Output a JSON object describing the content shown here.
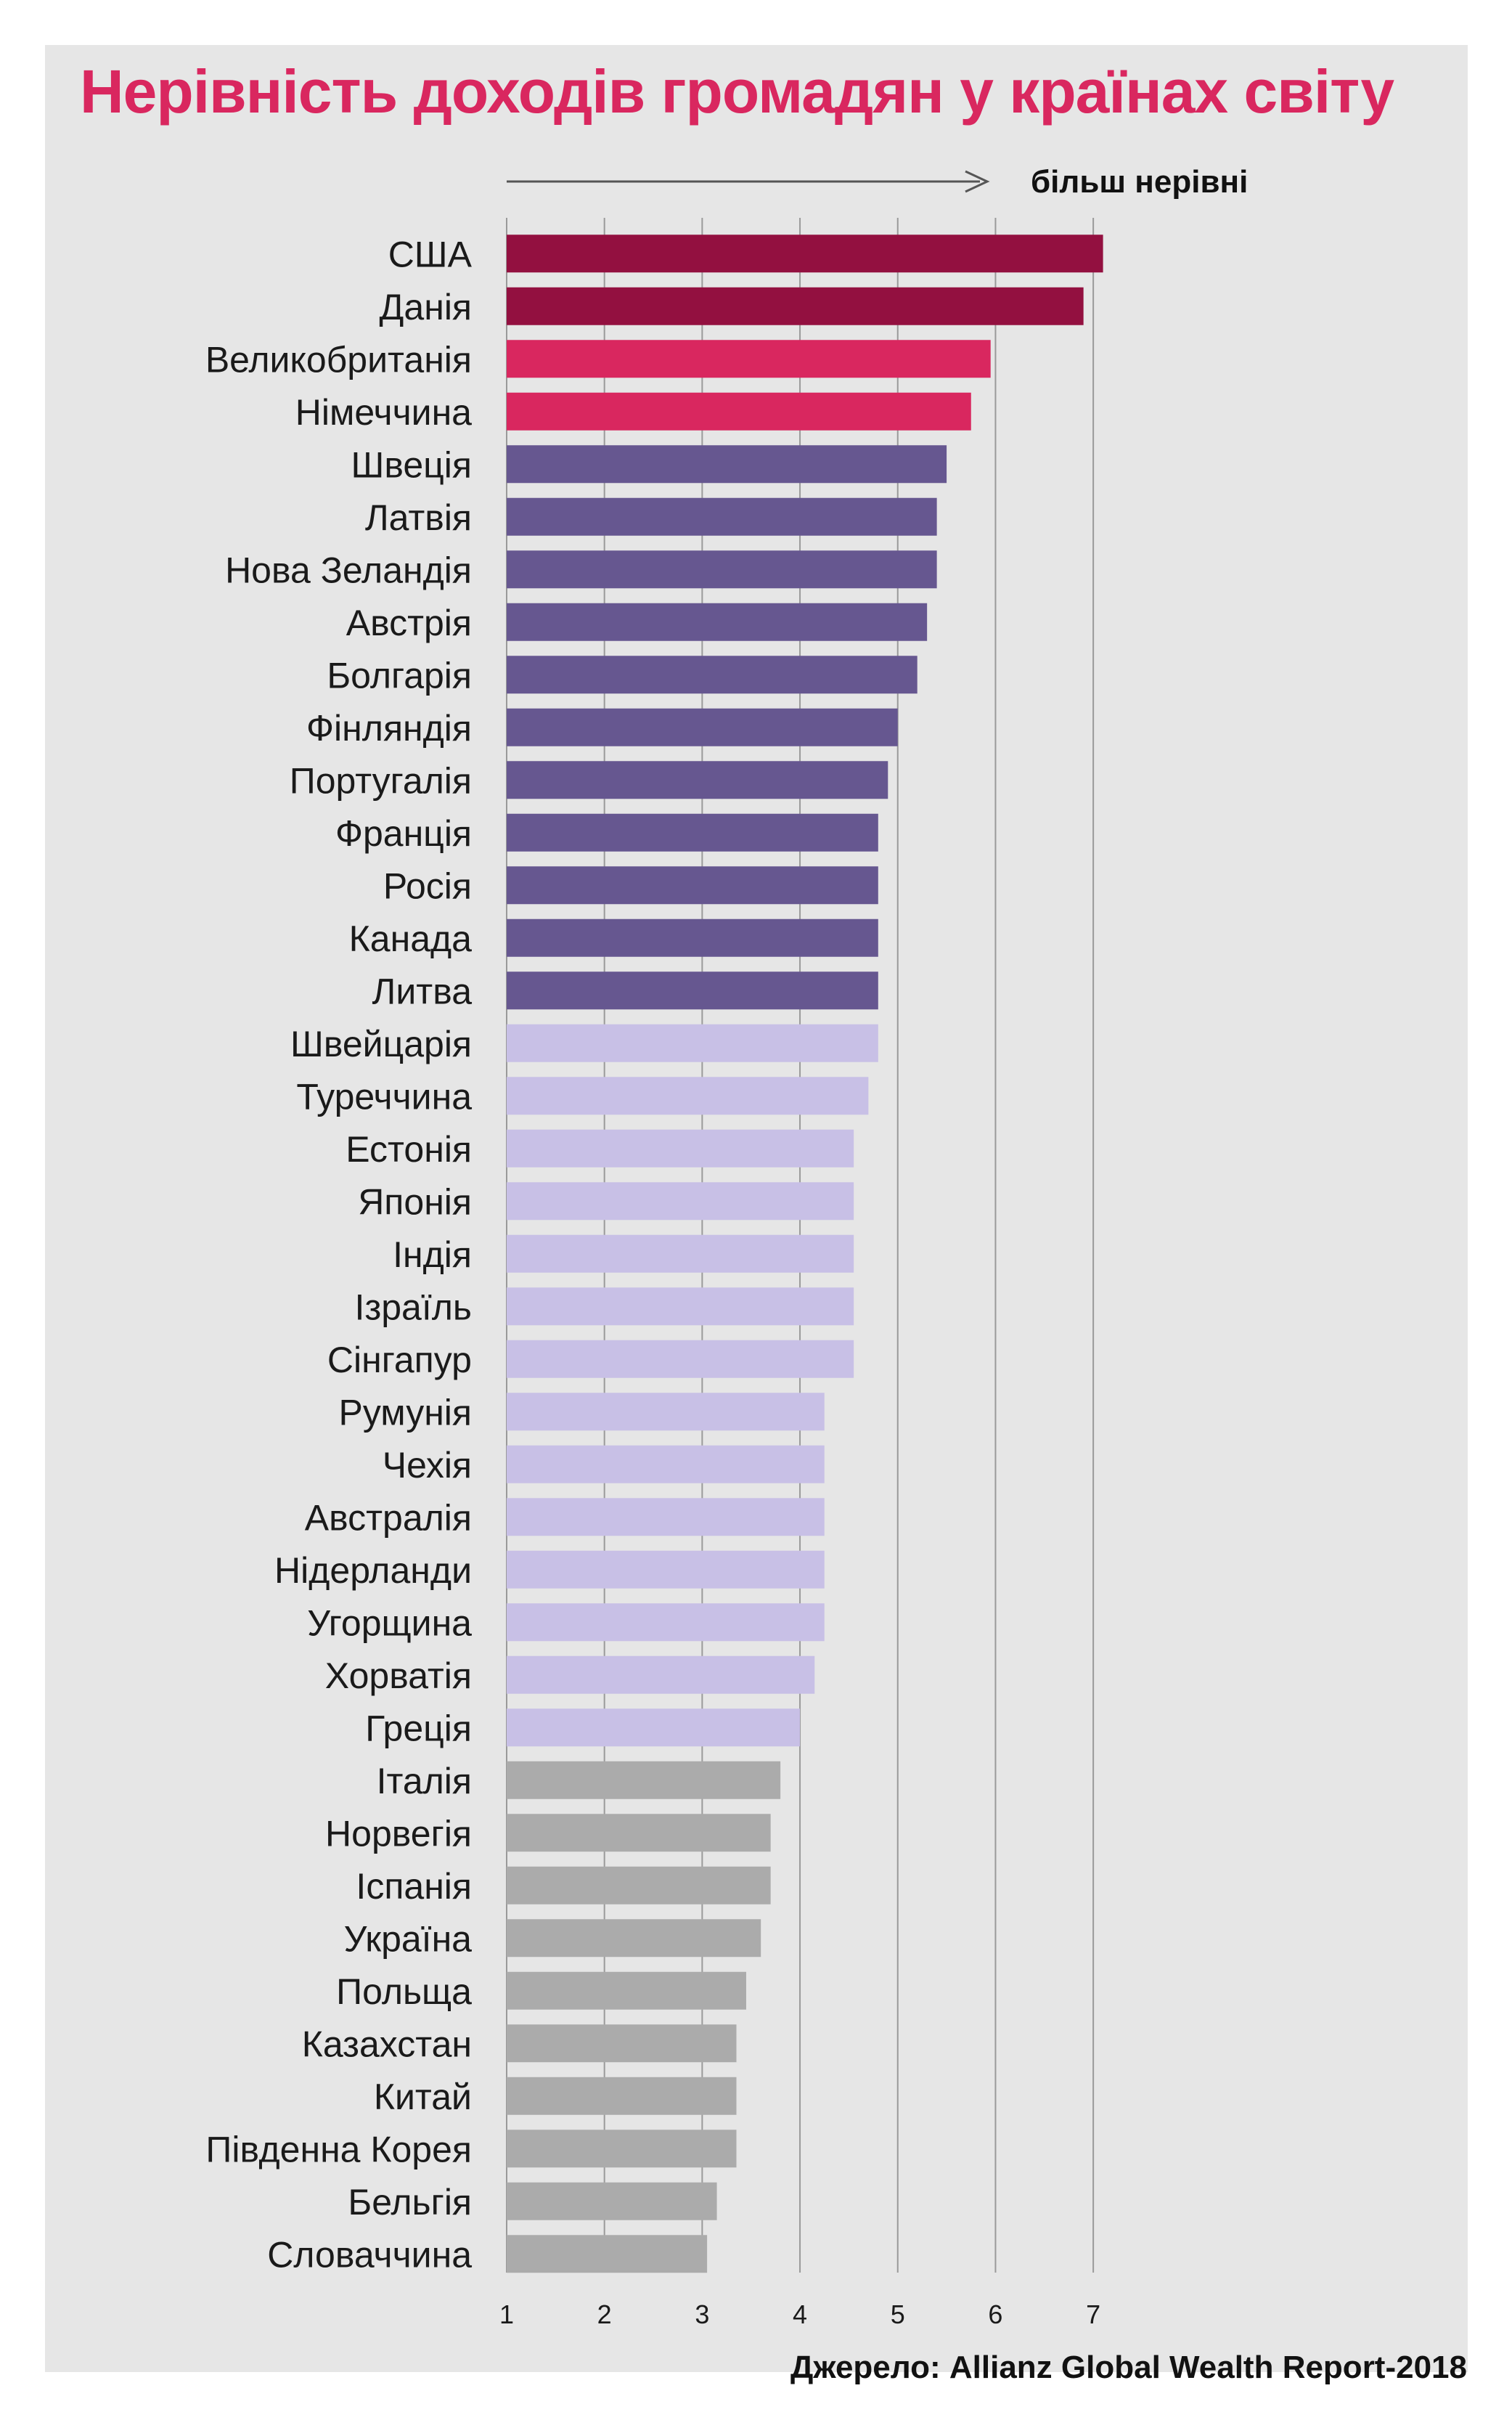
{
  "title": "Нерівність доходів громадян у країнах світу",
  "annotation": "більш нерівні",
  "source": "Джерело: Allianz Global Wealth Report-2018",
  "colors": {
    "background": "#e6e6e6",
    "title": "#d9275f",
    "top": "#931040",
    "high": "#d9275f",
    "upper": "#665790",
    "middle": "#c8c0e6",
    "lower": "#ababab",
    "grid": "#9a9a9a"
  },
  "chart_data": {
    "type": "bar",
    "orientation": "horizontal",
    "title": "Нерівність доходів громадян у країнах світу",
    "xlim": [
      1,
      7.4
    ],
    "x_ticks": [
      1,
      2,
      3,
      4,
      5,
      6,
      7
    ],
    "grid": true,
    "categories": [
      "США",
      "Данія",
      "Великобританія",
      "Німеччина",
      "Швеція",
      "Латвія",
      "Нова Зеландія",
      "Австрія",
      "Болгарія",
      "Фінляндія",
      "Португалія",
      "Франція",
      "Росія",
      "Канада",
      "Литва",
      "Швейцарія",
      "Туреччина",
      "Естонія",
      "Японія",
      "Індія",
      "Ізраїль",
      "Сінгапур",
      "Румунія",
      "Чехія",
      "Австралія",
      "Нідерланди",
      "Угорщина",
      "Хорватія",
      "Греція",
      "Італія",
      "Норвегія",
      "Іспанія",
      "Україна",
      "Польща",
      "Казахстан",
      "Китай",
      "Південна Корея",
      "Бельгія",
      "Словаччина"
    ],
    "values": [
      7.1,
      6.9,
      5.95,
      5.75,
      5.5,
      5.4,
      5.4,
      5.3,
      5.2,
      5.0,
      4.9,
      4.8,
      4.8,
      4.8,
      4.8,
      4.8,
      4.7,
      4.55,
      4.55,
      4.55,
      4.55,
      4.55,
      4.25,
      4.25,
      4.25,
      4.25,
      4.25,
      4.15,
      4.0,
      3.8,
      3.7,
      3.7,
      3.6,
      3.45,
      3.35,
      3.35,
      3.35,
      3.15,
      3.05
    ],
    "groups": [
      "top",
      "top",
      "high",
      "high",
      "upper",
      "upper",
      "upper",
      "upper",
      "upper",
      "upper",
      "upper",
      "upper",
      "upper",
      "upper",
      "upper",
      "middle",
      "middle",
      "middle",
      "middle",
      "middle",
      "middle",
      "middle",
      "middle",
      "middle",
      "middle",
      "middle",
      "middle",
      "middle",
      "middle",
      "lower",
      "lower",
      "lower",
      "lower",
      "lower",
      "lower",
      "lower",
      "lower",
      "lower",
      "lower"
    ]
  }
}
